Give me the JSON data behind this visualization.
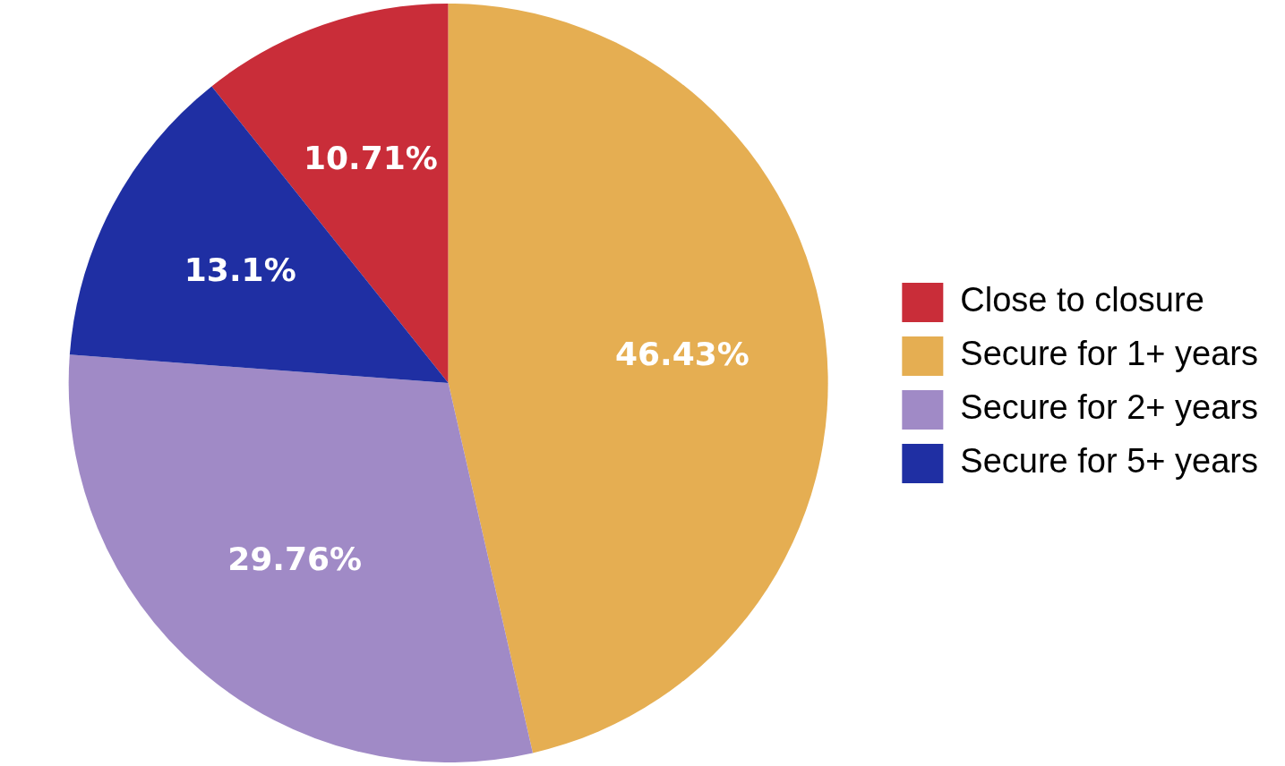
{
  "chart_data": {
    "type": "pie",
    "categories": [
      "Close to closure",
      "Secure for 1+ years",
      "Secure for 2+ years",
      "Secure for 5+ years"
    ],
    "values": [
      10.71,
      46.43,
      29.76,
      13.1
    ],
    "colors": [
      "#c92d39",
      "#e5ae52",
      "#a08ac6",
      "#1f2fa3"
    ],
    "value_labels": [
      "10.71%",
      "46.43%",
      "29.76%",
      "13.1%"
    ],
    "legend": "right"
  }
}
